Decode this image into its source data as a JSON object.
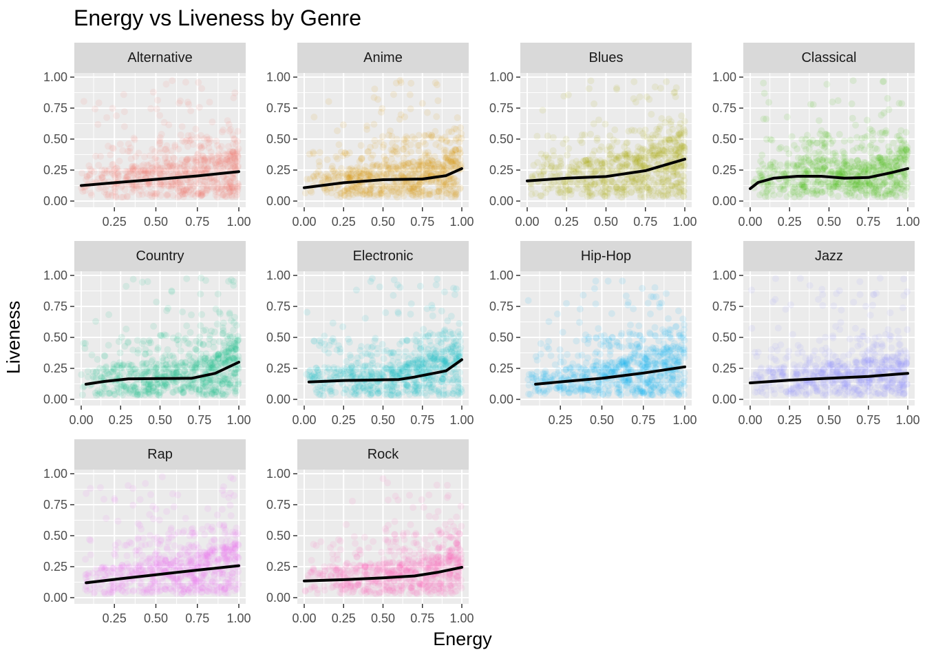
{
  "title": "Energy vs Liveness by Genre",
  "chart_data": {
    "type": "scatter",
    "title": "Energy vs Liveness by Genre",
    "xlabel": "Energy",
    "ylabel": "Liveness",
    "ylim": [
      0,
      1
    ],
    "y_ticks": [
      "0.00",
      "0.25",
      "0.50",
      "0.75",
      "1.00"
    ],
    "grid": true,
    "point_alpha": 0.1,
    "trend_line_color": "#000000",
    "panels": [
      {
        "name": "Alternative",
        "color": "#F8766D",
        "xlim": [
          0.05,
          1.0
        ],
        "x_ticks": [
          "0.25",
          "0.50",
          "0.75",
          "1.00"
        ],
        "x_tick_values": [
          0.25,
          0.5,
          0.75,
          1.0
        ],
        "trend": [
          [
            0.05,
            0.125
          ],
          [
            0.25,
            0.148
          ],
          [
            0.5,
            0.175
          ],
          [
            0.75,
            0.203
          ],
          [
            1.0,
            0.238
          ]
        ]
      },
      {
        "name": "Anime",
        "color": "#D89000",
        "xlim": [
          0.0,
          1.0
        ],
        "x_ticks": [
          "0.00",
          "0.25",
          "0.50",
          "0.75",
          "1.00"
        ],
        "x_tick_values": [
          0.0,
          0.25,
          0.5,
          0.75,
          1.0
        ],
        "trend": [
          [
            0.0,
            0.108
          ],
          [
            0.25,
            0.148
          ],
          [
            0.5,
            0.172
          ],
          [
            0.75,
            0.178
          ],
          [
            0.9,
            0.205
          ],
          [
            1.0,
            0.262
          ]
        ]
      },
      {
        "name": "Blues",
        "color": "#A3A500",
        "xlim": [
          0.0,
          1.0
        ],
        "x_ticks": [
          "0.00",
          "0.25",
          "0.50",
          "0.75",
          "1.00"
        ],
        "x_tick_values": [
          0.0,
          0.25,
          0.5,
          0.75,
          1.0
        ],
        "trend": [
          [
            0.0,
            0.163
          ],
          [
            0.25,
            0.185
          ],
          [
            0.5,
            0.198
          ],
          [
            0.75,
            0.245
          ],
          [
            1.0,
            0.338
          ]
        ]
      },
      {
        "name": "Classical",
        "color": "#39B600",
        "xlim": [
          0.0,
          1.0
        ],
        "x_ticks": [
          "0.00",
          "0.25",
          "0.50",
          "0.75",
          "1.00"
        ],
        "x_tick_values": [
          0.0,
          0.25,
          0.5,
          0.75,
          1.0
        ],
        "trend": [
          [
            0.0,
            0.1
          ],
          [
            0.05,
            0.15
          ],
          [
            0.15,
            0.185
          ],
          [
            0.3,
            0.2
          ],
          [
            0.45,
            0.2
          ],
          [
            0.6,
            0.185
          ],
          [
            0.75,
            0.19
          ],
          [
            0.9,
            0.23
          ],
          [
            1.0,
            0.262
          ]
        ]
      },
      {
        "name": "Country",
        "color": "#00BF7D",
        "xlim": [
          0.0,
          1.0
        ],
        "x_ticks": [
          "0.00",
          "0.25",
          "0.50",
          "0.75",
          "1.00"
        ],
        "x_tick_values": [
          0.0,
          0.25,
          0.5,
          0.75,
          1.0
        ],
        "trend": [
          [
            0.03,
            0.122
          ],
          [
            0.15,
            0.145
          ],
          [
            0.3,
            0.165
          ],
          [
            0.5,
            0.168
          ],
          [
            0.7,
            0.17
          ],
          [
            0.85,
            0.21
          ],
          [
            1.0,
            0.3
          ]
        ]
      },
      {
        "name": "Electronic",
        "color": "#00BFC4",
        "xlim": [
          0.0,
          1.0
        ],
        "x_ticks": [
          "0.00",
          "0.25",
          "0.50",
          "0.75",
          "1.00"
        ],
        "x_tick_values": [
          0.0,
          0.25,
          0.5,
          0.75,
          1.0
        ],
        "trend": [
          [
            0.03,
            0.14
          ],
          [
            0.25,
            0.152
          ],
          [
            0.5,
            0.158
          ],
          [
            0.6,
            0.16
          ],
          [
            0.7,
            0.18
          ],
          [
            0.9,
            0.23
          ],
          [
            1.0,
            0.32
          ]
        ]
      },
      {
        "name": "Hip-Hop",
        "color": "#00B0F6",
        "xlim": [
          0.05,
          1.0
        ],
        "x_ticks": [
          "0.25",
          "0.50",
          "0.75",
          "1.00"
        ],
        "x_tick_values": [
          0.25,
          0.5,
          0.75,
          1.0
        ],
        "trend": [
          [
            0.1,
            0.122
          ],
          [
            0.3,
            0.147
          ],
          [
            0.5,
            0.17
          ],
          [
            0.75,
            0.212
          ],
          [
            1.0,
            0.262
          ]
        ]
      },
      {
        "name": "Jazz",
        "color": "#9590FF",
        "xlim": [
          0.0,
          1.0
        ],
        "x_ticks": [
          "0.00",
          "0.25",
          "0.50",
          "0.75",
          "1.00"
        ],
        "x_tick_values": [
          0.0,
          0.25,
          0.5,
          0.75,
          1.0
        ],
        "trend": [
          [
            0.0,
            0.133
          ],
          [
            0.25,
            0.155
          ],
          [
            0.5,
            0.17
          ],
          [
            0.75,
            0.185
          ],
          [
            1.0,
            0.21
          ]
        ]
      },
      {
        "name": "Rap",
        "color": "#E76BF3",
        "xlim": [
          0.05,
          1.0
        ],
        "x_ticks": [
          "0.25",
          "0.50",
          "0.75",
          "1.00"
        ],
        "x_tick_values": [
          0.25,
          0.5,
          0.75,
          1.0
        ],
        "trend": [
          [
            0.08,
            0.12
          ],
          [
            0.3,
            0.155
          ],
          [
            0.5,
            0.185
          ],
          [
            0.75,
            0.222
          ],
          [
            1.0,
            0.258
          ]
        ]
      },
      {
        "name": "Rock",
        "color": "#FF62BC",
        "xlim": [
          0.0,
          1.0
        ],
        "x_ticks": [
          "0.00",
          "0.25",
          "0.50",
          "0.75",
          "1.00"
        ],
        "x_tick_values": [
          0.0,
          0.25,
          0.5,
          0.75,
          1.0
        ],
        "trend": [
          [
            0.0,
            0.135
          ],
          [
            0.25,
            0.145
          ],
          [
            0.5,
            0.16
          ],
          [
            0.7,
            0.175
          ],
          [
            0.85,
            0.205
          ],
          [
            1.0,
            0.245
          ]
        ]
      }
    ]
  }
}
